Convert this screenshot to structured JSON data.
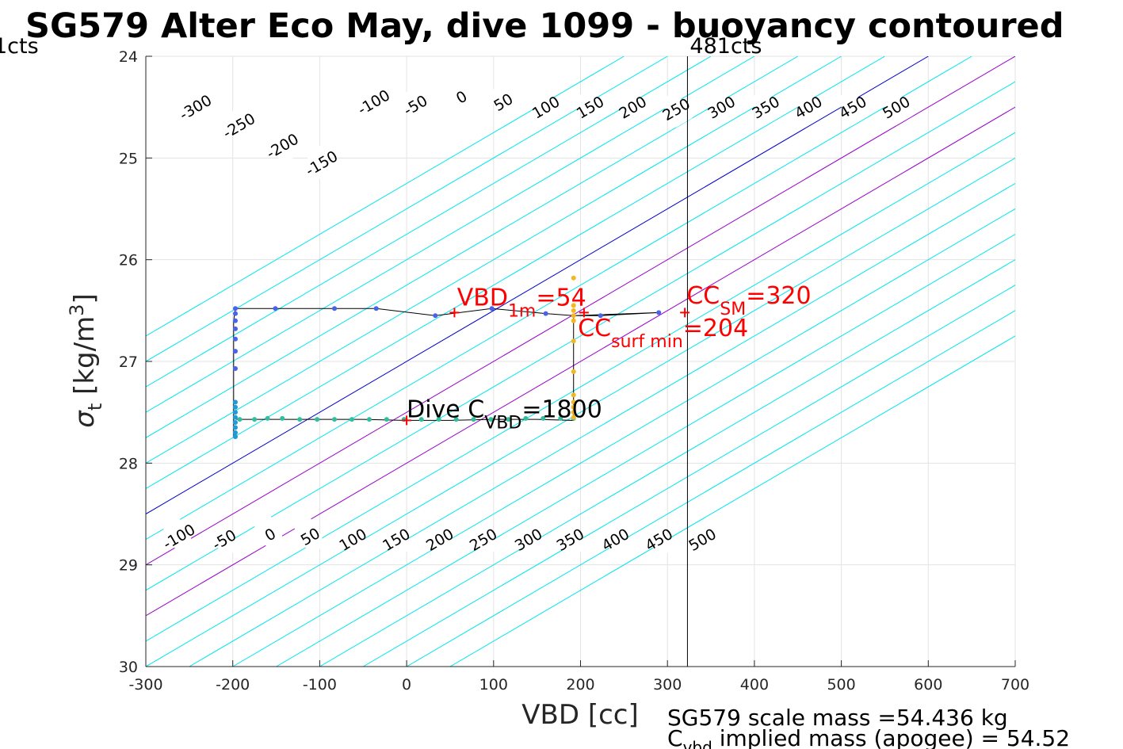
{
  "chart_data": {
    "type": "scatter",
    "title": "SG579 Alter Eco May, dive 1099 - buoyancy contoured",
    "xlabel": "VBD [cc]",
    "ylabel_main": "σ",
    "ylabel_sub": "t",
    "ylabel_unit": " [kg/m",
    "ylabel_sup": "3",
    "ylabel_close": "]",
    "xlim": [
      -300,
      700
    ],
    "ylim": [
      24,
      30
    ],
    "y_reversed": true,
    "grid": true,
    "xticks": [
      "-300",
      "-200",
      "-100",
      "0",
      "100",
      "200",
      "300",
      "400",
      "500",
      "600",
      "700"
    ],
    "yticks": [
      "24",
      "25",
      "26",
      "27",
      "28",
      "29",
      "30"
    ],
    "vertical_lines": [
      {
        "x": 323,
        "label": "481cts",
        "color": "#000000"
      }
    ],
    "left_cts_label": "1cts",
    "contours": {
      "slope_cc_per_sigma": -200,
      "levels": [
        -350,
        -300,
        -250,
        -200,
        -150,
        -100,
        -50,
        0,
        50,
        100,
        150,
        200,
        250,
        300,
        350,
        400,
        450,
        500,
        550,
        600,
        650
      ],
      "highlight_levels": {
        "0": "#0000cc",
        "100": "#9900cc",
        "200": "#9900cc"
      },
      "default_color": "#00e5ee",
      "top_labels": [
        {
          "text": "-300",
          "x": -243,
          "y": 24.5
        },
        {
          "text": "-250",
          "x": -193,
          "y": 24.68
        },
        {
          "text": "-200",
          "x": -143,
          "y": 24.88
        },
        {
          "text": "-150",
          "x": -98,
          "y": 25.05
        },
        {
          "text": "-100",
          "x": -38,
          "y": 24.45
        },
        {
          "text": "-50",
          "x": 10,
          "y": 24.48
        },
        {
          "text": "0",
          "x": 63,
          "y": 24.4
        },
        {
          "text": "50",
          "x": 111,
          "y": 24.45
        },
        {
          "text": "100",
          "x": 160,
          "y": 24.5
        },
        {
          "text": "150",
          "x": 211,
          "y": 24.5
        },
        {
          "text": "200",
          "x": 260,
          "y": 24.5
        },
        {
          "text": "250",
          "x": 310,
          "y": 24.52
        },
        {
          "text": "300",
          "x": 362,
          "y": 24.5
        },
        {
          "text": "350",
          "x": 413,
          "y": 24.5
        },
        {
          "text": "400",
          "x": 462,
          "y": 24.5
        },
        {
          "text": "450",
          "x": 513,
          "y": 24.5
        },
        {
          "text": "500",
          "x": 563,
          "y": 24.5
        }
      ],
      "bottom_labels": [
        {
          "text": "-100",
          "x": -262,
          "y": 28.72
        },
        {
          "text": "-50",
          "x": -210,
          "y": 28.75
        },
        {
          "text": "0",
          "x": -157,
          "y": 28.7
        },
        {
          "text": "50",
          "x": -111,
          "y": 28.72
        },
        {
          "text": "100",
          "x": -62,
          "y": 28.75
        },
        {
          "text": "150",
          "x": -12,
          "y": 28.75
        },
        {
          "text": "200",
          "x": 38,
          "y": 28.75
        },
        {
          "text": "250",
          "x": 88,
          "y": 28.75
        },
        {
          "text": "300",
          "x": 140,
          "y": 28.75
        },
        {
          "text": "350",
          "x": 188,
          "y": 28.75
        },
        {
          "text": "400",
          "x": 240,
          "y": 28.75
        },
        {
          "text": "450",
          "x": 290,
          "y": 28.75
        },
        {
          "text": "500",
          "x": 340,
          "y": 28.75
        }
      ]
    },
    "series": [
      {
        "kind": "trajectory",
        "color": "#000000",
        "points": [
          [
            -199,
            27.75
          ],
          [
            -199,
            27.5
          ],
          [
            -199,
            27.0
          ],
          [
            -199,
            26.6
          ],
          [
            -197,
            26.48
          ],
          [
            -151,
            26.48
          ],
          [
            -83,
            26.48
          ],
          [
            -35,
            26.48
          ],
          [
            33,
            26.55
          ],
          [
            98,
            26.48
          ],
          [
            160,
            26.53
          ],
          [
            192,
            26.55
          ],
          [
            223,
            26.55
          ],
          [
            290,
            26.52
          ],
          [
            192,
            26.55
          ],
          [
            192,
            26.7
          ],
          [
            192,
            27.1
          ],
          [
            192,
            27.4
          ],
          [
            192,
            27.58
          ],
          [
            150,
            27.57
          ],
          [
            100,
            27.57
          ],
          [
            50,
            27.58
          ],
          [
            0,
            27.58
          ],
          [
            -50,
            27.57
          ],
          [
            -100,
            27.57
          ],
          [
            -150,
            27.57
          ],
          [
            -196,
            27.57
          ]
        ]
      },
      {
        "kind": "descent",
        "color": "#4a62e8",
        "points": [
          [
            -197,
            26.48
          ],
          [
            -197,
            26.53
          ],
          [
            -197,
            26.6
          ],
          [
            -197,
            26.68
          ],
          [
            -197,
            26.78
          ],
          [
            -197,
            26.9
          ],
          [
            -197,
            27.07
          ],
          [
            -151,
            26.48
          ],
          [
            -83,
            26.48
          ],
          [
            -35,
            26.48
          ],
          [
            33,
            26.55
          ],
          [
            98,
            26.48
          ],
          [
            160,
            26.53
          ],
          [
            223,
            26.55
          ],
          [
            290,
            26.52
          ]
        ]
      },
      {
        "kind": "bottom",
        "color": "#1f9ad6",
        "points": [
          [
            -197,
            27.4
          ],
          [
            -197,
            27.45
          ],
          [
            -197,
            27.5
          ],
          [
            -197,
            27.55
          ],
          [
            -197,
            27.6
          ],
          [
            -197,
            27.65
          ],
          [
            -197,
            27.7
          ],
          [
            -197,
            27.74
          ]
        ]
      },
      {
        "kind": "mid",
        "color": "#2fbf9f",
        "points": [
          [
            -192,
            27.57
          ],
          [
            -175,
            27.57
          ],
          [
            -160,
            27.56
          ],
          [
            -143,
            27.56
          ],
          [
            -123,
            27.57
          ],
          [
            -103,
            27.57
          ],
          [
            -83,
            27.57
          ],
          [
            -63,
            27.57
          ],
          [
            -43,
            27.57
          ],
          [
            -23,
            27.57
          ],
          [
            -3,
            27.57
          ],
          [
            17,
            27.57
          ],
          [
            37,
            27.57
          ],
          [
            57,
            27.57
          ],
          [
            77,
            27.57
          ],
          [
            97,
            27.57
          ],
          [
            117,
            27.57
          ],
          [
            137,
            27.56
          ],
          [
            157,
            27.56
          ],
          [
            177,
            27.56
          ],
          [
            192,
            27.56
          ]
        ]
      },
      {
        "kind": "ascent",
        "color": "#f2b820",
        "points": [
          [
            192,
            26.18
          ],
          [
            192,
            26.45
          ],
          [
            192,
            26.5
          ],
          [
            192,
            26.55
          ],
          [
            192,
            26.6
          ],
          [
            192,
            26.8
          ],
          [
            192,
            27.1
          ],
          [
            192,
            27.33
          ],
          [
            192,
            27.4
          ],
          [
            192,
            27.45
          ],
          [
            192,
            27.5
          ],
          [
            192,
            27.55
          ]
        ]
      }
    ],
    "markers": [
      {
        "x": 55,
        "y": 26.52,
        "color": "#ff0000"
      },
      {
        "x": 0,
        "y": 27.58,
        "color": "#ff0000"
      },
      {
        "x": 204,
        "y": 26.52,
        "color": "#ff0000"
      },
      {
        "x": 320,
        "y": 26.52,
        "color": "#ff0000"
      }
    ],
    "annotations": {
      "vbd1m": {
        "prefix": "VBD",
        "sub": "1m",
        "suffix": "=54",
        "x": 58,
        "y": 26.45
      },
      "ccsm": {
        "prefix": "CC",
        "sub": "SM",
        "suffix": "=320",
        "x": 322,
        "y": 26.43
      },
      "ccsurf": {
        "prefix": "CC",
        "sub": "surf min",
        "suffix": "=204",
        "x": 197,
        "y": 26.75
      },
      "divec": {
        "prefix": "Dive C",
        "sub": "VBD",
        "suffix": "=1800",
        "x": 0,
        "y": 27.55
      }
    },
    "footer": {
      "line1": "SG579 scale mass =54.436 kg",
      "line2_prefix": "C",
      "line2_sub": "vbd",
      "line2_suffix": " implied mass (apogee) = 54.52"
    }
  }
}
